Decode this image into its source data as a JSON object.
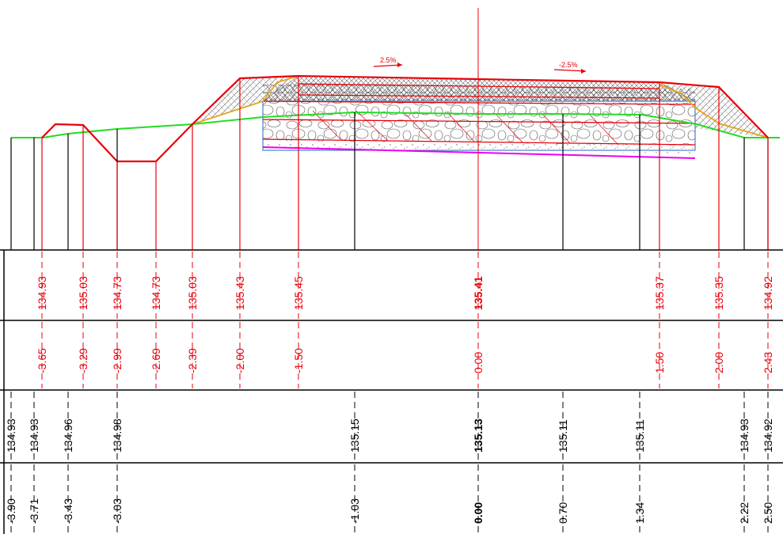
{
  "design_rows": {
    "elevations": [
      {
        "value": "134.93"
      },
      {
        "value": "135.03"
      },
      {
        "value": "134.73"
      },
      {
        "value": "134.73"
      },
      {
        "value": "135.03"
      },
      {
        "value": "135.43"
      },
      {
        "value": "135.45"
      },
      {
        "value": "135.41",
        "bold": true
      },
      {
        "value": "135.37"
      },
      {
        "value": "135.35"
      },
      {
        "value": "134.92"
      }
    ],
    "offsets": [
      {
        "value": "-3.65"
      },
      {
        "value": "-3.29"
      },
      {
        "value": "-2.99"
      },
      {
        "value": "-2.69"
      },
      {
        "value": "-2.39"
      },
      {
        "value": "-2.00"
      },
      {
        "value": "-1.50"
      },
      {
        "value": "0.00"
      },
      {
        "value": "1.50"
      },
      {
        "value": "2.00"
      },
      {
        "value": "2.43"
      }
    ]
  },
  "ground_rows": {
    "elevations": [
      {
        "value": "134.93"
      },
      {
        "value": "134.93"
      },
      {
        "value": "134.96"
      },
      {
        "value": "134.98"
      },
      {
        "value": "135.15"
      },
      {
        "value": "135.13",
        "bold": true
      },
      {
        "value": "135.11"
      },
      {
        "value": "135.11"
      },
      {
        "value": "134.93"
      },
      {
        "value": "134.92"
      }
    ],
    "offsets": [
      {
        "value": "-3.90"
      },
      {
        "value": "-3.71"
      },
      {
        "value": "-3.43"
      },
      {
        "value": "-3.03"
      },
      {
        "value": "-1.03"
      },
      {
        "value": "0.00",
        "bold": true
      },
      {
        "value": "0.70"
      },
      {
        "value": "1.34"
      },
      {
        "value": "2.22"
      },
      {
        "value": "2.50"
      }
    ]
  },
  "slope_labels": {
    "left": "2.5%",
    "right": "-2.5%"
  },
  "colors": {
    "design": "#e8000b",
    "ground": "#22dd22",
    "shoulder": "#e8a317",
    "subgrade": "#ee00ee",
    "structure": "#4a7fd0",
    "ink": "#000000"
  }
}
